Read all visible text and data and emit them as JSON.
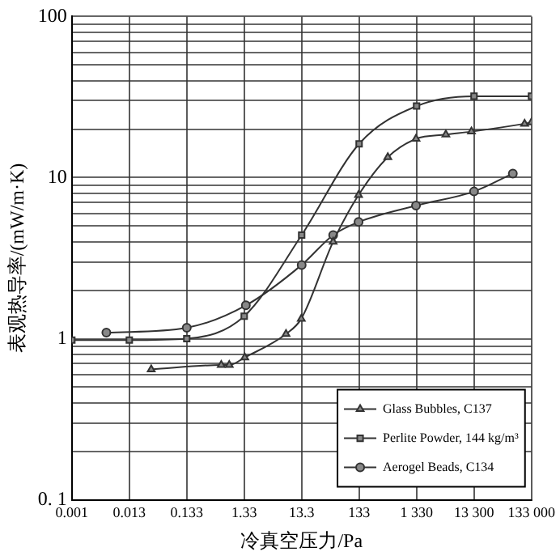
{
  "chart_data": {
    "type": "line",
    "xlabel": "冷真空压力/Pa",
    "ylabel": "表观热导率/(mW/m·K)",
    "log": "xy",
    "grid": true,
    "legend": "bottom right",
    "line_style": "solid",
    "xlim": [
      0.00133,
      133000
    ],
    "ylim": [
      0.1,
      100
    ],
    "xticks": [
      {
        "value": 0.00133,
        "label": "0.001"
      },
      {
        "value": 0.0133,
        "label": "0.013"
      },
      {
        "value": 0.133,
        "label": "0.133"
      },
      {
        "value": 1.33,
        "label": "1.33"
      },
      {
        "value": 13.3,
        "label": "13.3"
      },
      {
        "value": 133,
        "label": "133"
      },
      {
        "value": 1330,
        "label": "1 330"
      },
      {
        "value": 13300,
        "label": "13 300"
      },
      {
        "value": 133000,
        "label": "133 000"
      }
    ],
    "yticks": [
      {
        "value": 0.1,
        "label": "0. 1"
      },
      {
        "value": 0.2,
        "label": null
      },
      {
        "value": 0.3,
        "label": null
      },
      {
        "value": 0.4,
        "label": null
      },
      {
        "value": 0.5,
        "label": null
      },
      {
        "value": 0.6,
        "label": null
      },
      {
        "value": 0.7,
        "label": null
      },
      {
        "value": 0.8,
        "label": null
      },
      {
        "value": 0.9,
        "label": null
      },
      1,
      {
        "value": 2,
        "label": null
      },
      {
        "value": 3,
        "label": null
      },
      {
        "value": 4,
        "label": null
      },
      {
        "value": 5,
        "label": null
      },
      {
        "value": 6,
        "label": null
      },
      {
        "value": 7,
        "label": null
      },
      {
        "value": 8,
        "label": null
      },
      {
        "value": 9,
        "label": null
      },
      10,
      {
        "value": 20,
        "label": null
      },
      {
        "value": 30,
        "label": null
      },
      {
        "value": 40,
        "label": null
      },
      {
        "value": 50,
        "label": null
      },
      {
        "value": 60,
        "label": null
      },
      {
        "value": 70,
        "label": null
      },
      {
        "value": 80,
        "label": null
      },
      {
        "value": 90,
        "label": null
      },
      100
    ],
    "series": [
      {
        "name": "Glass Bubbles, C137",
        "color": "#333333",
        "marker": "triangle",
        "x": [
          0.032,
          0.53,
          0.73,
          1.36,
          7.1,
          13.1,
          47,
          130,
          420,
          1300,
          4300,
          12000,
          101000,
          133000
        ],
        "values": [
          0.645,
          0.686,
          0.686,
          0.765,
          1.07,
          1.33,
          4.0,
          7.8,
          13.4,
          17.4,
          18.5,
          19.3,
          21.6,
          22
        ]
      },
      {
        "name": "Perlite Powder, 144 kg/m³",
        "color": "#333333",
        "marker": "square",
        "x": [
          0.00133,
          0.0133,
          0.133,
          1.33,
          13.3,
          133,
          1330,
          13300,
          133000
        ],
        "values": [
          0.98,
          0.98,
          1.0,
          1.38,
          4.4,
          16.2,
          27.8,
          32,
          32
        ]
      },
      {
        "name": "Aerogel Beads, C134",
        "color": "#333333",
        "marker": "circle",
        "x": [
          0.0053,
          0.133,
          1.42,
          13.3,
          47,
          130,
          1300,
          13300,
          63000
        ],
        "values": [
          1.09,
          1.17,
          1.61,
          2.87,
          4.4,
          5.3,
          6.7,
          8.2,
          10.6
        ]
      }
    ]
  }
}
